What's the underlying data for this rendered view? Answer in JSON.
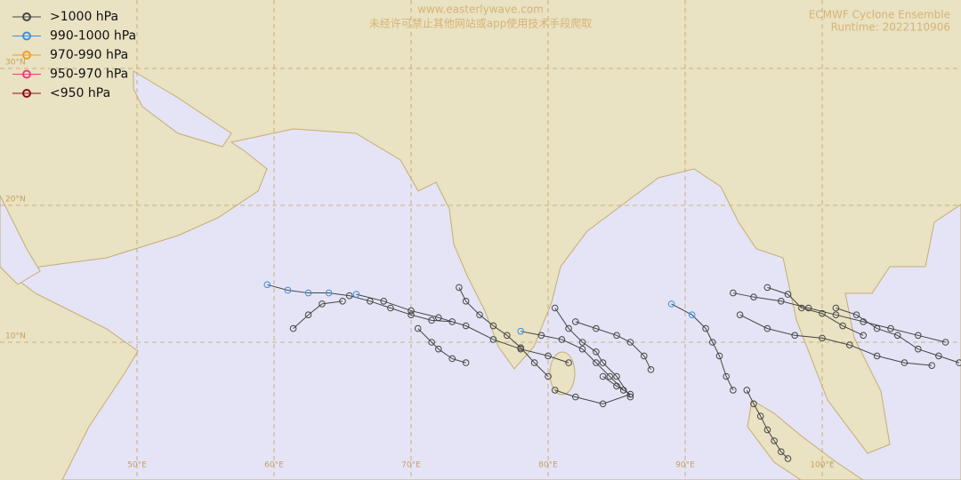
{
  "header": {
    "watermark_url": "www.easterlywave.com",
    "watermark_notice": "未经许可禁止其他网站或app使用技术手段爬取",
    "title": "ECMWF Cyclone Ensemble",
    "runtime": "Runtime: 2022110906"
  },
  "legend": [
    {
      "label": ">1000 hPa",
      "color": "#454545"
    },
    {
      "label": "990-1000 hPa",
      "color": "#3a8fe0"
    },
    {
      "label": "970-990 hPa",
      "color": "#f0a020"
    },
    {
      "label": "950-970 hPa",
      "color": "#e8407a"
    },
    {
      "label": "<950 hPa",
      "color": "#8b1010"
    }
  ],
  "map": {
    "lon_ticks": [
      {
        "value": 50,
        "label": "50°E"
      },
      {
        "value": 60,
        "label": "60°E"
      },
      {
        "value": 70,
        "label": "70°E"
      },
      {
        "value": 80,
        "label": "80°E"
      },
      {
        "value": 90,
        "label": "90°E"
      },
      {
        "value": 100,
        "label": "100°E"
      }
    ],
    "lat_ticks": [
      {
        "value": 10,
        "label": "10°N"
      },
      {
        "value": 20,
        "label": "20°N"
      },
      {
        "value": 30,
        "label": "30°N"
      }
    ],
    "tracks": [
      {
        "points": [
          {
            "lon": 59.5,
            "lat": 14.2,
            "cls": 1
          },
          {
            "lon": 61,
            "lat": 13.8,
            "cls": 1
          },
          {
            "lon": 62.5,
            "lat": 13.6,
            "cls": 1
          },
          {
            "lon": 64,
            "lat": 13.6,
            "cls": 1
          },
          {
            "lon": 65.5,
            "lat": 13.4,
            "cls": 0
          },
          {
            "lon": 67,
            "lat": 13,
            "cls": 0
          },
          {
            "lon": 68.5,
            "lat": 12.5,
            "cls": 0
          },
          {
            "lon": 70,
            "lat": 12,
            "cls": 0
          },
          {
            "lon": 71.5,
            "lat": 11.6,
            "cls": 0
          },
          {
            "lon": 73,
            "lat": 11.5,
            "cls": 0
          }
        ]
      },
      {
        "points": [
          {
            "lon": 66,
            "lat": 13.5,
            "cls": 1
          },
          {
            "lon": 68,
            "lat": 13,
            "cls": 0
          },
          {
            "lon": 70,
            "lat": 12.3,
            "cls": 0
          },
          {
            "lon": 72,
            "lat": 11.8,
            "cls": 0
          },
          {
            "lon": 74,
            "lat": 11.2,
            "cls": 0
          },
          {
            "lon": 76,
            "lat": 10.2,
            "cls": 0
          },
          {
            "lon": 78,
            "lat": 9.5,
            "cls": 0
          },
          {
            "lon": 80,
            "lat": 9,
            "cls": 0
          },
          {
            "lon": 81.5,
            "lat": 8.5,
            "cls": 0
          }
        ]
      },
      {
        "points": [
          {
            "lon": 73.5,
            "lat": 14,
            "cls": 0
          },
          {
            "lon": 74,
            "lat": 13,
            "cls": 0
          },
          {
            "lon": 75,
            "lat": 12,
            "cls": 0
          },
          {
            "lon": 76,
            "lat": 11.2,
            "cls": 0
          },
          {
            "lon": 77,
            "lat": 10.5,
            "cls": 0
          },
          {
            "lon": 78,
            "lat": 9.6,
            "cls": 0
          },
          {
            "lon": 79,
            "lat": 8.5,
            "cls": 0
          },
          {
            "lon": 80,
            "lat": 7.5,
            "cls": 0
          }
        ]
      },
      {
        "points": [
          {
            "lon": 78,
            "lat": 10.8,
            "cls": 1
          },
          {
            "lon": 79.5,
            "lat": 10.5,
            "cls": 0
          },
          {
            "lon": 81,
            "lat": 10.2,
            "cls": 0
          },
          {
            "lon": 82.5,
            "lat": 9.5,
            "cls": 0
          },
          {
            "lon": 83.5,
            "lat": 8.5,
            "cls": 0
          },
          {
            "lon": 84.5,
            "lat": 7.5,
            "cls": 0
          },
          {
            "lon": 85.5,
            "lat": 6.5,
            "cls": 0
          }
        ]
      },
      {
        "points": [
          {
            "lon": 80.5,
            "lat": 12.5,
            "cls": 0
          },
          {
            "lon": 81.5,
            "lat": 11,
            "cls": 0
          },
          {
            "lon": 82.5,
            "lat": 10,
            "cls": 0
          },
          {
            "lon": 83.5,
            "lat": 9.3,
            "cls": 0
          },
          {
            "lon": 84,
            "lat": 8.5,
            "cls": 0
          },
          {
            "lon": 85,
            "lat": 7.5,
            "cls": 0
          },
          {
            "lon": 86,
            "lat": 6,
            "cls": 0
          }
        ]
      },
      {
        "points": [
          {
            "lon": 82,
            "lat": 11.5,
            "cls": 0
          },
          {
            "lon": 83.5,
            "lat": 11,
            "cls": 0
          },
          {
            "lon": 85,
            "lat": 10.5,
            "cls": 0
          },
          {
            "lon": 86,
            "lat": 10,
            "cls": 0
          },
          {
            "lon": 87,
            "lat": 9,
            "cls": 0
          },
          {
            "lon": 87.5,
            "lat": 8,
            "cls": 0
          }
        ]
      },
      {
        "points": [
          {
            "lon": 89,
            "lat": 12.8,
            "cls": 1
          },
          {
            "lon": 90.5,
            "lat": 12,
            "cls": 1
          },
          {
            "lon": 91.5,
            "lat": 11,
            "cls": 0
          },
          {
            "lon": 92,
            "lat": 10,
            "cls": 0
          },
          {
            "lon": 92.5,
            "lat": 9,
            "cls": 0
          },
          {
            "lon": 93,
            "lat": 7.5,
            "cls": 0
          },
          {
            "lon": 93.5,
            "lat": 6.5,
            "cls": 0
          }
        ]
      },
      {
        "points": [
          {
            "lon": 93.5,
            "lat": 13.6,
            "cls": 0
          },
          {
            "lon": 95,
            "lat": 13.3,
            "cls": 0
          },
          {
            "lon": 97,
            "lat": 13,
            "cls": 0
          },
          {
            "lon": 99,
            "lat": 12.5,
            "cls": 0
          },
          {
            "lon": 101,
            "lat": 12,
            "cls": 0
          },
          {
            "lon": 103,
            "lat": 11.5,
            "cls": 0
          },
          {
            "lon": 105,
            "lat": 11,
            "cls": 0
          },
          {
            "lon": 107,
            "lat": 10.5,
            "cls": 0
          },
          {
            "lon": 109,
            "lat": 10,
            "cls": 0
          }
        ]
      },
      {
        "points": [
          {
            "lon": 94,
            "lat": 12,
            "cls": 0
          },
          {
            "lon": 96,
            "lat": 11,
            "cls": 0
          },
          {
            "lon": 98,
            "lat": 10.5,
            "cls": 0
          },
          {
            "lon": 100,
            "lat": 10.3,
            "cls": 0
          },
          {
            "lon": 102,
            "lat": 9.8,
            "cls": 0
          },
          {
            "lon": 104,
            "lat": 9,
            "cls": 0
          },
          {
            "lon": 106,
            "lat": 8.5,
            "cls": 0
          },
          {
            "lon": 108,
            "lat": 8.3,
            "cls": 0
          }
        ]
      },
      {
        "points": [
          {
            "lon": 94.5,
            "lat": 6.5,
            "cls": 0
          },
          {
            "lon": 95,
            "lat": 5.5,
            "cls": 0
          },
          {
            "lon": 95.5,
            "lat": 4.6,
            "cls": 0
          },
          {
            "lon": 96,
            "lat": 3.6,
            "cls": 0
          },
          {
            "lon": 96.5,
            "lat": 2.8,
            "cls": 0
          },
          {
            "lon": 97,
            "lat": 2,
            "cls": 0
          },
          {
            "lon": 97.5,
            "lat": 1.5,
            "cls": 0
          }
        ]
      },
      {
        "points": [
          {
            "lon": 101,
            "lat": 12.5,
            "cls": 0
          },
          {
            "lon": 102.5,
            "lat": 12,
            "cls": 0
          },
          {
            "lon": 104,
            "lat": 11,
            "cls": 0
          },
          {
            "lon": 105.5,
            "lat": 10.5,
            "cls": 0
          },
          {
            "lon": 107,
            "lat": 9.5,
            "cls": 0
          },
          {
            "lon": 108.5,
            "lat": 9,
            "cls": 0
          },
          {
            "lon": 110,
            "lat": 8.5,
            "cls": 0
          }
        ]
      },
      {
        "points": [
          {
            "lon": 84,
            "lat": 7.5,
            "cls": 0
          },
          {
            "lon": 85,
            "lat": 6.8,
            "cls": 0
          },
          {
            "lon": 86,
            "lat": 6.2,
            "cls": 0
          },
          {
            "lon": 84,
            "lat": 5.5,
            "cls": 0
          },
          {
            "lon": 82,
            "lat": 6,
            "cls": 0
          },
          {
            "lon": 80.5,
            "lat": 6.5,
            "cls": 0
          }
        ]
      },
      {
        "points": [
          {
            "lon": 70.5,
            "lat": 11,
            "cls": 0
          },
          {
            "lon": 71.5,
            "lat": 10,
            "cls": 0
          },
          {
            "lon": 72,
            "lat": 9.5,
            "cls": 0
          },
          {
            "lon": 73,
            "lat": 8.8,
            "cls": 0
          },
          {
            "lon": 74,
            "lat": 8.5,
            "cls": 0
          }
        ]
      },
      {
        "points": [
          {
            "lon": 96,
            "lat": 14,
            "cls": 0
          },
          {
            "lon": 97.5,
            "lat": 13.5,
            "cls": 0
          },
          {
            "lon": 98.5,
            "lat": 12.5,
            "cls": 0
          },
          {
            "lon": 100,
            "lat": 12.1,
            "cls": 0
          },
          {
            "lon": 101.5,
            "lat": 11.2,
            "cls": 0
          },
          {
            "lon": 103,
            "lat": 10.5,
            "cls": 0
          }
        ]
      },
      {
        "points": [
          {
            "lon": 61.4,
            "lat": 11,
            "cls": 0
          },
          {
            "lon": 62.5,
            "lat": 12,
            "cls": 0
          },
          {
            "lon": 63.5,
            "lat": 12.8,
            "cls": 0
          },
          {
            "lon": 65,
            "lat": 13,
            "cls": 0
          }
        ]
      }
    ]
  }
}
